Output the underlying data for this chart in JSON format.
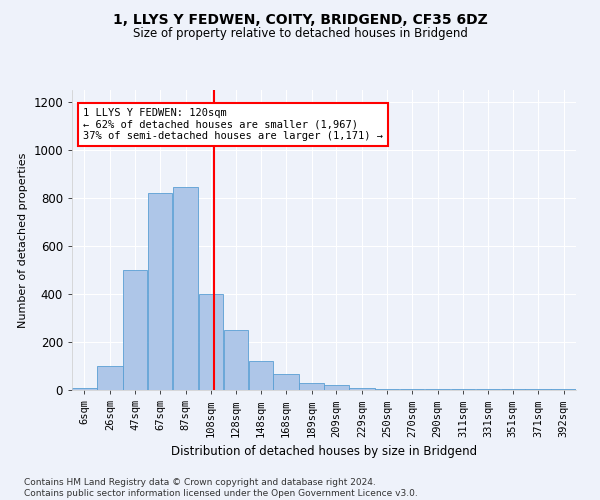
{
  "title1": "1, LLYS Y FEDWEN, COITY, BRIDGEND, CF35 6DZ",
  "title2": "Size of property relative to detached houses in Bridgend",
  "xlabel": "Distribution of detached houses by size in Bridgend",
  "ylabel": "Number of detached properties",
  "footer1": "Contains HM Land Registry data © Crown copyright and database right 2024.",
  "footer2": "Contains public sector information licensed under the Open Government Licence v3.0.",
  "annotation_line1": "1 LLYS Y FEDWEN: 120sqm",
  "annotation_line2": "← 62% of detached houses are smaller (1,967)",
  "annotation_line3": "37% of semi-detached houses are larger (1,171) →",
  "property_size": 120,
  "bar_left_edges": [
    6,
    26,
    47,
    67,
    87,
    108,
    128,
    148,
    168,
    189,
    209,
    229,
    250,
    270,
    290,
    311,
    331,
    351,
    371,
    392
  ],
  "bar_widths": [
    20,
    21,
    20,
    20,
    21,
    20,
    20,
    20,
    21,
    20,
    20,
    21,
    20,
    20,
    21,
    20,
    20,
    20,
    21,
    20
  ],
  "bar_heights": [
    10,
    100,
    500,
    820,
    845,
    400,
    250,
    120,
    65,
    30,
    20,
    10,
    5,
    5,
    5,
    5,
    5,
    5,
    5,
    5
  ],
  "bar_color": "#aec6e8",
  "bar_edge_color": "#5a9fd4",
  "vline_x": 120,
  "vline_color": "red",
  "ylim": [
    0,
    1250
  ],
  "yticks": [
    0,
    200,
    400,
    600,
    800,
    1000,
    1200
  ],
  "fig_background": "#eef2fa",
  "plot_background": "#eef2fa",
  "grid_color": "#ffffff",
  "annotation_box_facecolor": "#ffffff",
  "annotation_box_edgecolor": "red",
  "title1_fontsize": 10,
  "title2_fontsize": 8.5,
  "ylabel_fontsize": 8,
  "xlabel_fontsize": 8.5,
  "ytick_fontsize": 8.5,
  "xtick_fontsize": 7.5,
  "footer_fontsize": 6.5,
  "ann_fontsize": 7.5
}
